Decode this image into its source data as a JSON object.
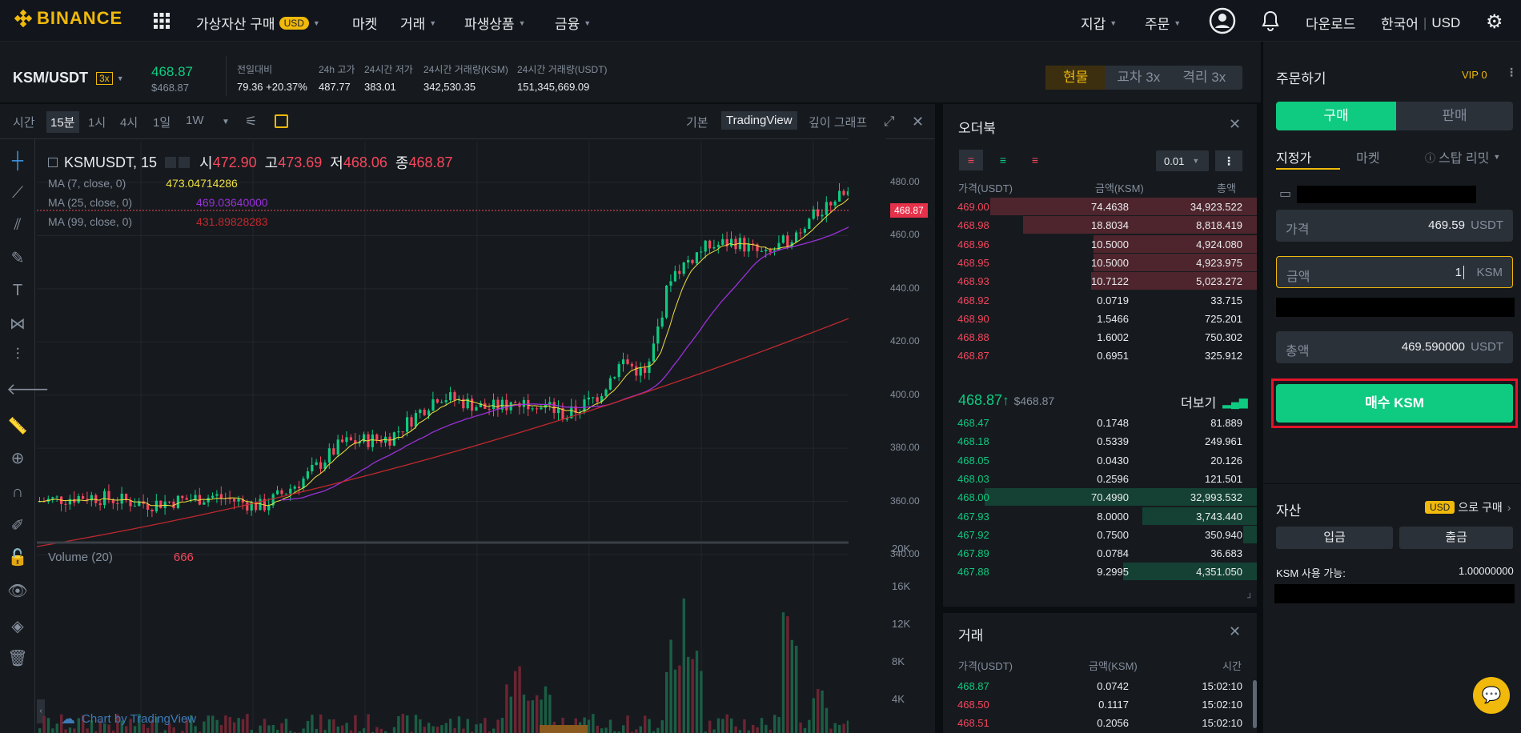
{
  "nav": {
    "brand": "BINANCE",
    "menu": [
      {
        "label": "가상자산 구매",
        "badge": "USD"
      },
      {
        "label": "마켓"
      },
      {
        "label": "거래"
      },
      {
        "label": "파생상품"
      },
      {
        "label": "금융"
      }
    ],
    "right": {
      "wallet": "지갑",
      "orders": "주문",
      "download": "다운로드",
      "language": "한국어",
      "currency": "USD"
    }
  },
  "ticker": {
    "pair": "KSM/USDT",
    "leverage": "3x",
    "price": "468.87",
    "price_usd": "$468.87",
    "stats": [
      {
        "label": "전일대비",
        "value": "79.36 +20.37%"
      },
      {
        "label": "24h 고가",
        "value": "487.77"
      },
      {
        "label": "24시간 저가",
        "value": "383.01"
      },
      {
        "label": "24시간 거래량(KSM)",
        "value": "342,530.35"
      },
      {
        "label": "24시간 거래량(USDT)",
        "value": "151,345,669.09"
      }
    ],
    "modes": {
      "spot": "현물",
      "cross": "교차",
      "cross_lev": "3x",
      "isolated": "격리",
      "isolated_lev": "3x"
    }
  },
  "chart_toolbar": {
    "intervals": [
      "시간",
      "15분",
      "1시",
      "4시",
      "1일",
      "1W"
    ],
    "active": "15분",
    "views": [
      "기본",
      "TradingView",
      "깊이 그래프"
    ],
    "active_view": "TradingView"
  },
  "chart": {
    "symbol": "KSMUSDT, 15",
    "o_label": "시",
    "o": "472.90",
    "h_label": "고",
    "h": "473.69",
    "l_label": "저",
    "l": "468.06",
    "c_label": "종",
    "c": "468.87",
    "ma": [
      {
        "label": "MA (7, close, 0)",
        "value": "473.04714286",
        "color": "#f0e040"
      },
      {
        "label": "MA (25, close, 0)",
        "value": "469.03640000",
        "color": "#9b30d9"
      },
      {
        "label": "MA (99, close, 0)",
        "value": "431.89828283",
        "color": "#c0282e"
      }
    ],
    "last_price_tag": "468.87",
    "price_ticks": [
      "480.00",
      "460.00",
      "440.00",
      "420.00",
      "400.00",
      "380.00",
      "360.00",
      "340.00"
    ],
    "volume_label": "Volume (20)",
    "volume_value": "666",
    "volume_ticks": [
      "20K",
      "16K",
      "12K",
      "8K",
      "4K"
    ],
    "credit": "Chart by TradingView"
  },
  "chart_data": {
    "type": "candlestick",
    "price_axis": [
      340,
      480
    ],
    "volume_axis": [
      0,
      20000
    ],
    "series": [
      {
        "name": "MA (7, close, 0)",
        "last": 473.04714286
      },
      {
        "name": "MA (25, close, 0)",
        "last": 469.0364
      },
      {
        "name": "MA (99, close, 0)",
        "last": 431.89828283
      }
    ]
  },
  "orderbook": {
    "title": "오더북",
    "precision": "0.01",
    "headers": [
      "가격(USDT)",
      "금액(KSM)",
      "총액"
    ],
    "asks": [
      [
        "469.00",
        "74.4638",
        "34,923.522",
        0.98
      ],
      [
        "468.98",
        "18.8034",
        "8,818.419",
        0.86
      ],
      [
        "468.96",
        "10.5000",
        "4,924.080",
        0.6
      ],
      [
        "468.95",
        "10.5000",
        "4,923.975",
        0.6
      ],
      [
        "468.93",
        "10.7122",
        "5,023.272",
        0.61
      ],
      [
        "468.92",
        "0.0719",
        "33.715",
        0
      ],
      [
        "468.90",
        "1.5466",
        "725.201",
        0
      ],
      [
        "468.88",
        "1.6002",
        "750.302",
        0
      ],
      [
        "468.87",
        "0.6951",
        "325.912",
        0
      ]
    ],
    "mid_price": "468.87",
    "mid_arrow": "↑",
    "mid_usd": "$468.87",
    "more": "더보기",
    "bids": [
      [
        "468.47",
        "0.1748",
        "81.889",
        0
      ],
      [
        "468.18",
        "0.5339",
        "249.961",
        0
      ],
      [
        "468.05",
        "0.0430",
        "20.126",
        0
      ],
      [
        "468.03",
        "0.2596",
        "121.501",
        0
      ],
      [
        "468.00",
        "70.4990",
        "32,993.532",
        1
      ],
      [
        "467.93",
        "8.0000",
        "3,743.440",
        0.42
      ],
      [
        "467.92",
        "0.7500",
        "350.940",
        0.05
      ],
      [
        "467.89",
        "0.0784",
        "36.683",
        0
      ],
      [
        "467.88",
        "9.2995",
        "4,351.050",
        0.49
      ]
    ]
  },
  "trades": {
    "title": "거래",
    "headers": [
      "가격(USDT)",
      "금액(KSM)",
      "시간"
    ],
    "rows": [
      [
        "468.87",
        "0.0742",
        "15:02:10",
        "up"
      ],
      [
        "468.50",
        "0.1117",
        "15:02:10",
        "dn"
      ],
      [
        "468.51",
        "0.2056",
        "15:02:10",
        "dn"
      ]
    ]
  },
  "order": {
    "title": "주문하기",
    "vip": "VIP 0",
    "buy": "구매",
    "sell": "판매",
    "types": [
      "지정가",
      "마켓",
      "스탑 리밋"
    ],
    "price_label": "가격",
    "price": "469.59",
    "price_unit": "USDT",
    "amount_label": "금액",
    "amount": "1",
    "amount_unit": "KSM",
    "total_label": "총액",
    "total": "469.590000",
    "total_unit": "USDT",
    "submit": "매수 KSM"
  },
  "assets": {
    "title": "자산",
    "buy_badge": "USD",
    "buy_text": "으로 구매",
    "deposit": "입금",
    "withdraw": "출금",
    "available_label": "KSM 사용 가능:",
    "available": "1.00000000"
  }
}
